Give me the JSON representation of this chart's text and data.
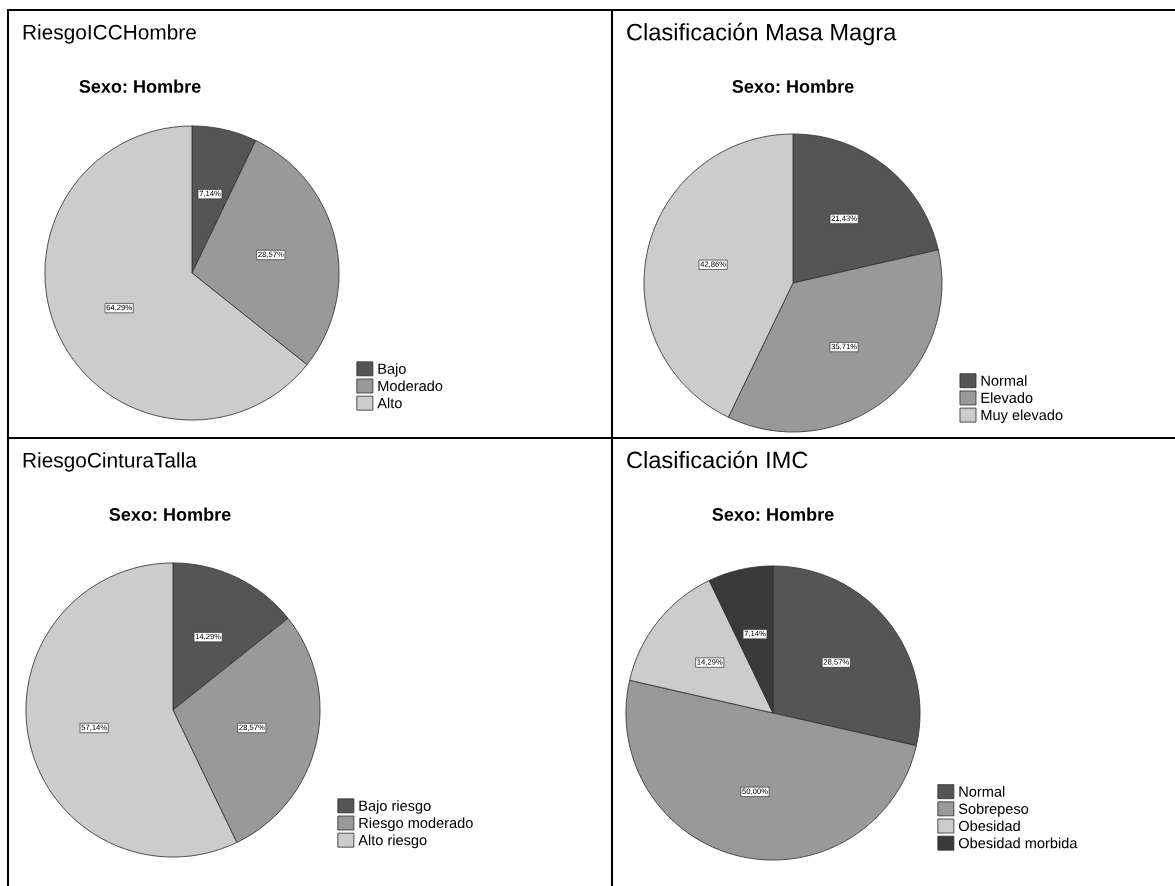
{
  "chart_data": [
    {
      "type": "pie",
      "title": "RiesgoICCHombre",
      "subtitle": "Sexo: Hombre",
      "categories": [
        "Bajo",
        "Moderado",
        "Alto"
      ],
      "values": [
        7.14,
        28.57,
        64.29
      ],
      "value_labels": [
        "7,14%",
        "28,57%",
        "64,29%"
      ],
      "colors": [
        "#555555",
        "#999999",
        "#cccccc"
      ],
      "legend": "bottom right"
    },
    {
      "type": "pie",
      "title": "Clasificación Masa Magra",
      "subtitle": "Sexo: Hombre",
      "categories": [
        "Normal",
        "Elevado",
        "Muy elevado"
      ],
      "values": [
        21.43,
        35.71,
        42.86
      ],
      "value_labels": [
        "21,43%",
        "35,71%",
        "42,86%"
      ],
      "colors": [
        "#555555",
        "#999999",
        "#cccccc"
      ],
      "legend": "bottom right"
    },
    {
      "type": "pie",
      "title": "RiesgoCinturaTalla",
      "subtitle": "Sexo: Hombre",
      "categories": [
        "Bajo riesgo",
        "Riesgo moderado",
        "Alto riesgo"
      ],
      "values": [
        14.29,
        28.57,
        57.14
      ],
      "value_labels": [
        "14,29%",
        "28,57%",
        "57,14%"
      ],
      "colors": [
        "#555555",
        "#999999",
        "#cccccc"
      ],
      "legend": "bottom right"
    },
    {
      "type": "pie",
      "title": "Clasificación IMC",
      "subtitle": "Sexo: Hombre",
      "categories": [
        "Normal",
        "Sobrepeso",
        "Obesidad",
        "Obesidad morbida"
      ],
      "values": [
        28.57,
        50.0,
        14.29,
        7.14
      ],
      "value_labels": [
        "28,57%",
        "50,00%",
        "14,29%",
        "7,14%"
      ],
      "colors": [
        "#555555",
        "#999999",
        "#cccccc",
        "#3a3a3a"
      ],
      "legend": "bottom right"
    }
  ]
}
